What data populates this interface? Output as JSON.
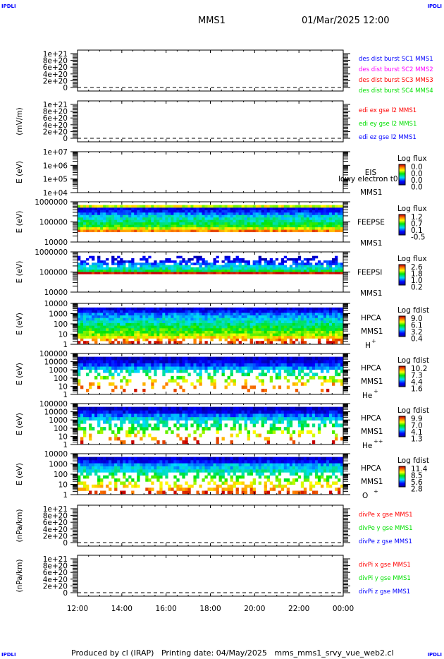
{
  "header": {
    "corner_tl": "IPDLI",
    "corner_tr": "IPDLI",
    "corner_bl": "IPDLI",
    "corner_br": "IPDLI",
    "spacecraft": "MMS1",
    "date": "01/Mar/2025 12:00"
  },
  "footer": {
    "text": "Produced by cl (IRAP)   Printing date: 04/May/2025   mms_mms1_srvy_vue_web2.cl"
  },
  "colors": {
    "blue": "#0000ff",
    "magenta": "#ff00ff",
    "red": "#ff0000",
    "green": "#00e000"
  },
  "chart_data": [
    {
      "type": "line",
      "ylabel": "",
      "yticks": [
        "1e+21",
        "8e+20",
        "6e+20",
        "4e+20",
        "2e+20",
        "0"
      ],
      "ylim": [
        0,
        1e+21
      ],
      "zero_line": "dashed",
      "legend": [
        {
          "name": "des dist burst SC1 MMS1",
          "color": "#0000ff"
        },
        {
          "name": "des dist burst SC2 MMS2",
          "color": "#ff00ff"
        },
        {
          "name": "des dist burst SC3 MMS3",
          "color": "#ff0000"
        },
        {
          "name": "des dist burst SC4 MMS4",
          "color": "#00e000"
        }
      ],
      "series": []
    },
    {
      "type": "line",
      "ylabel": "(mV/m)",
      "yticks": [
        "1e+21",
        "8e+20",
        "6e+20",
        "4e+20",
        "2e+20",
        "0"
      ],
      "ylim": [
        0,
        1e+21
      ],
      "zero_line": "dashed",
      "legend": [
        {
          "name": "edi ex gse l2 MMS1",
          "color": "#ff0000"
        },
        {
          "name": "edi ey gse l2 MMS1",
          "color": "#00e000"
        },
        {
          "name": "edi ez gse l2 MMS1",
          "color": "#0000ff"
        }
      ],
      "series": []
    },
    {
      "type": "heatmap",
      "ylabel": "E (eV)",
      "yticks": [
        "1e+07",
        "1e+06",
        "1e+05",
        "1e+04"
      ],
      "ylim": [
        10000.0,
        10000000.0
      ],
      "log": true,
      "labels": [
        "EIS",
        "lowy electron t0",
        "MMS1"
      ],
      "colorbar_title": "Log flux",
      "colorbar_ticks": [
        "0.0",
        "0.0",
        "0.0",
        "0.0"
      ],
      "profile": []
    },
    {
      "type": "heatmap",
      "ylabel": "E (eV)",
      "yticks": [
        "1000000",
        "100000",
        "10000"
      ],
      "ylim": [
        10000.0,
        1000000.0
      ],
      "log": true,
      "labels": [
        "FEEPSE",
        "MMS1"
      ],
      "colorbar_title": "Log flux",
      "colorbar_ticks": [
        "1.2",
        "0.7",
        "0.1",
        "-0.5"
      ],
      "colorbar_range": [
        -0.5,
        1.2
      ],
      "profile": [
        0.85,
        0.7,
        0.55,
        0.5,
        0.45,
        0.4,
        0.35,
        0.25,
        0.15,
        0.1,
        0.7
      ]
    },
    {
      "type": "heatmap",
      "ylabel": "E (eV)",
      "yticks": [
        "1000000",
        "100000",
        "10000"
      ],
      "ylim": [
        10000.0,
        1000000.0
      ],
      "log": true,
      "labels": [
        "FEEPSI",
        "MMS1"
      ],
      "colorbar_title": "Log flux",
      "colorbar_ticks": [
        "2.6",
        "1.8",
        "1.0",
        "0.2"
      ],
      "colorbar_range": [
        0.2,
        2.6
      ],
      "profile": [
        1.0,
        0.5,
        0.4,
        0.35,
        0.25,
        0.15,
        0.1,
        0.08
      ]
    },
    {
      "type": "heatmap",
      "ylabel": "E (eV)",
      "yticks": [
        "10000",
        "1000",
        "100",
        "10",
        "1"
      ],
      "ylim": [
        1,
        30000
      ],
      "log": true,
      "labels": [
        "HPCA",
        "MMS1",
        "H",
        "+"
      ],
      "colorbar_title": "Log fdist",
      "colorbar_ticks": [
        "9.0",
        "6.1",
        "3.2",
        "0.4"
      ],
      "colorbar_range": [
        0.4,
        9.0
      ],
      "profile": [
        0.95,
        0.85,
        0.75,
        0.65,
        0.6,
        0.55,
        0.5,
        0.45,
        0.4,
        0.35,
        0.3,
        0.25,
        0.15,
        0.08
      ]
    },
    {
      "type": "heatmap",
      "ylabel": "E (eV)",
      "yticks": [
        "100000",
        "10000",
        "1000",
        "100",
        "10",
        "1"
      ],
      "ylim": [
        1,
        100000
      ],
      "log": true,
      "labels": [
        "HPCA",
        "MMS1",
        "He",
        "+"
      ],
      "colorbar_title": "Log fdist",
      "colorbar_ticks": [
        "10.2",
        "7.3",
        "4.4",
        "1.6"
      ],
      "colorbar_range": [
        1.6,
        10.2
      ],
      "profile": [
        0.9,
        0.85,
        0.8,
        0.7,
        0.6,
        0.45,
        0.4,
        0.3,
        0.2,
        0.1,
        0.05
      ]
    },
    {
      "type": "heatmap",
      "ylabel": "E (eV)",
      "yticks": [
        "100000",
        "10000",
        "1000",
        "100",
        "10",
        "1"
      ],
      "ylim": [
        1,
        100000
      ],
      "log": true,
      "labels": [
        "HPCA",
        "MMS1",
        "He",
        "++"
      ],
      "colorbar_title": "Log fdist",
      "colorbar_ticks": [
        "9.9",
        "7.0",
        "4.1",
        "1.3"
      ],
      "colorbar_range": [
        1.3,
        9.9
      ],
      "profile": [
        0.95,
        0.85,
        0.75,
        0.65,
        0.55,
        0.45,
        0.4,
        0.35,
        0.25,
        0.12,
        0.05
      ]
    },
    {
      "type": "heatmap",
      "ylabel": "E (eV)",
      "yticks": [
        "10000",
        "1000",
        "100",
        "10",
        "1"
      ],
      "ylim": [
        1,
        30000
      ],
      "log": true,
      "labels": [
        "HPCA",
        "MMS1",
        "O",
        "+"
      ],
      "colorbar_title": "Log fdist",
      "colorbar_ticks": [
        "11.4",
        "8.5",
        "5.6",
        "2.8"
      ],
      "colorbar_range": [
        2.8,
        11.4
      ],
      "profile": [
        0.95,
        0.85,
        0.75,
        0.7,
        0.6,
        0.55,
        0.45,
        0.4,
        0.35,
        0.3,
        0.15,
        0.08
      ]
    },
    {
      "type": "line",
      "ylabel": "(nPa/km)",
      "yticks": [
        "1e+21",
        "8e+20",
        "6e+20",
        "4e+20",
        "2e+20",
        "0"
      ],
      "ylim": [
        0,
        1e+21
      ],
      "zero_line": "dashed",
      "legend": [
        {
          "name": "divPe x gse MMS1",
          "color": "#ff0000"
        },
        {
          "name": "divPe y gse MMS1",
          "color": "#00e000"
        },
        {
          "name": "divPe z gse MMS1",
          "color": "#0000ff"
        }
      ],
      "series": []
    },
    {
      "type": "line",
      "ylabel": "(nPa/km)",
      "yticks": [
        "1e+21",
        "8e+20",
        "6e+20",
        "4e+20",
        "2e+20",
        "0"
      ],
      "ylim": [
        0,
        1e+21
      ],
      "zero_line": "dashed",
      "legend": [
        {
          "name": "divPi x gse MMS1",
          "color": "#ff0000"
        },
        {
          "name": "divPi y gse MMS1",
          "color": "#00e000"
        },
        {
          "name": "divPi z gse MMS1",
          "color": "#0000ff"
        }
      ],
      "series": []
    }
  ],
  "xaxis": {
    "ticks": [
      "12:00",
      "14:00",
      "16:00",
      "18:00",
      "20:00",
      "22:00",
      "00:00"
    ]
  }
}
